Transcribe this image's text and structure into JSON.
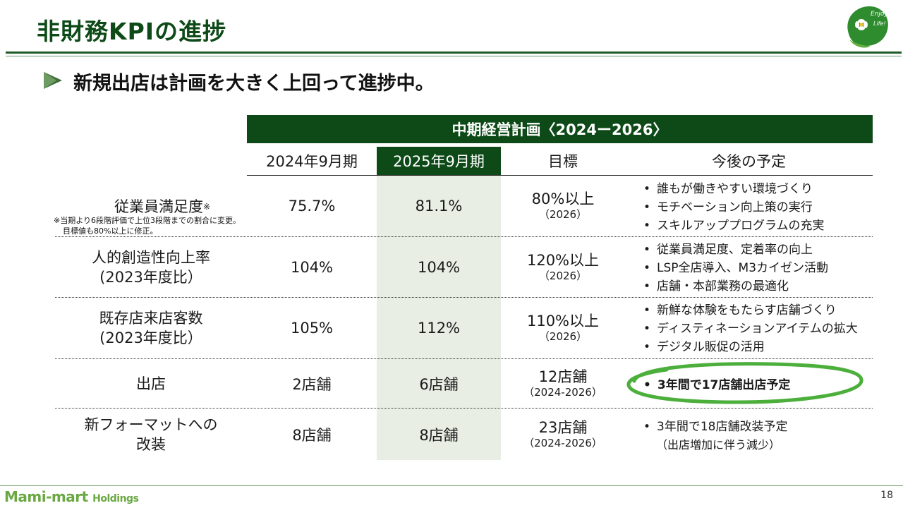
{
  "header": {
    "title": "非財務KPIの進捗",
    "logo_text_1": "Enjoy",
    "logo_text_2": "Life!"
  },
  "subtitle": "新規出店は計画を大きく上回って進捗中。",
  "table": {
    "plan_header": "中期経営計画〈2024ー2026〉",
    "columns": [
      "2024年9月期",
      "2025年9月期",
      "目標",
      "今後の予定"
    ],
    "rows": [
      {
        "metric": "従業員満足度",
        "metric_mark": "※",
        "note_1": "※当期より6段階評価で上位3段階までの割合に変更。",
        "note_2": "目標値も80%以上に修正。",
        "fy2024": "75.7%",
        "fy2025": "81.1%",
        "target": "80%以上",
        "target_sub": "（2026）",
        "plans": [
          "誰もが働きやすい環境づくり",
          "モチベーション向上策の実行",
          "スキルアッププログラムの充実"
        ]
      },
      {
        "metric_1": "人的創造性向上率",
        "metric_2": "(2023年度比）",
        "fy2024": "104%",
        "fy2025": "104%",
        "target": "120%以上",
        "target_sub": "（2026）",
        "plans": [
          "従業員満足度、定着率の向上",
          "LSP全店導入、M3カイゼン活動",
          "店舗・本部業務の最適化"
        ]
      },
      {
        "metric_1": "既存店来店客数",
        "metric_2": "(2023年度比）",
        "fy2024": "105%",
        "fy2025": "112%",
        "target": "110%以上",
        "target_sub": "（2026）",
        "plans": [
          "新鮮な体験をもたらす店舗づくり",
          "ディスティネーションアイテムの拡大",
          "デジタル販促の活用"
        ]
      },
      {
        "metric": "出店",
        "fy2024": "2店舗",
        "fy2025": "6店舗",
        "target": "12店舗",
        "target_sub": "（2024-2026）",
        "plans": [
          "3年間で17店舗出店予定"
        ]
      },
      {
        "metric_1": "新フォーマットへの",
        "metric_2": "改装",
        "fy2024": "8店舗",
        "fy2025": "8店舗",
        "target": "23店舗",
        "target_sub": "（2024-2026）",
        "plans": [
          "3年間で18店舗改装予定"
        ],
        "plans_sub": "（出店増加に伴う減少）"
      }
    ]
  },
  "footer": {
    "company": "Mami-mart",
    "company_suffix": "Holdings",
    "page": "18"
  },
  "colors": {
    "brand_green": "#0d4a17",
    "highlight_col": "#e8eee4",
    "ellipse_green": "#4caf3c"
  }
}
